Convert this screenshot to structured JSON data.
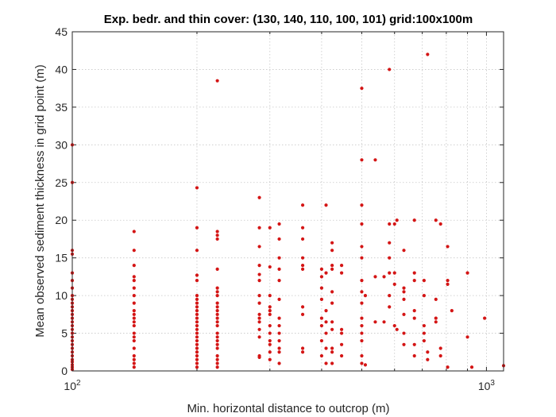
{
  "chart_data": {
    "type": "scatter",
    "title": "Exp. bedr. and thin cover: (130, 140, 110, 100, 101) grid:100x100m",
    "xlabel": "Min. horizontal distance to outcrop (m)",
    "ylabel": "Mean observed sediment thickness in grid point (m)",
    "x_scale": "log",
    "xlim": [
      100,
      1100
    ],
    "ylim": [
      0,
      45
    ],
    "x_ticks": [
      {
        "value": 100,
        "base": "10",
        "exp": "2"
      },
      {
        "value": 1000,
        "base": "10",
        "exp": "3"
      }
    ],
    "x_grid": [
      100,
      200,
      300,
      400,
      500,
      600,
      700,
      800,
      900,
      1000
    ],
    "y_ticks": [
      0,
      5,
      10,
      15,
      20,
      25,
      30,
      35,
      40,
      45
    ],
    "y_tick_labels": [
      "0",
      "5",
      "10",
      "15",
      "20",
      "25",
      "30",
      "35",
      "40",
      "45"
    ],
    "grid": true,
    "marker_color": "#d41515",
    "series": [
      {
        "points": [
          [
            100,
            30
          ],
          [
            100,
            25
          ],
          [
            100,
            16
          ],
          [
            100,
            15.5
          ],
          [
            100,
            13
          ],
          [
            100,
            12
          ],
          [
            100,
            11
          ],
          [
            100,
            10
          ],
          [
            100,
            9.5
          ],
          [
            100,
            9
          ],
          [
            100,
            8.5
          ],
          [
            100,
            8
          ],
          [
            100,
            7.5
          ],
          [
            100,
            7
          ],
          [
            100,
            6.5
          ],
          [
            100,
            6
          ],
          [
            100,
            5.5
          ],
          [
            100,
            5
          ],
          [
            100,
            4.5
          ],
          [
            100,
            4
          ],
          [
            100,
            3.5
          ],
          [
            100,
            3
          ],
          [
            100,
            2.5
          ],
          [
            100,
            2
          ],
          [
            100,
            1.5
          ],
          [
            100,
            1.2
          ],
          [
            100,
            0.8
          ],
          [
            100,
            0.5
          ],
          [
            100,
            0.2
          ],
          [
            141,
            18.5
          ],
          [
            141,
            16
          ],
          [
            141,
            14
          ],
          [
            141,
            12.5
          ],
          [
            141,
            12
          ],
          [
            141,
            11
          ],
          [
            141,
            10
          ],
          [
            141,
            9
          ],
          [
            141,
            8
          ],
          [
            141,
            7.5
          ],
          [
            141,
            7
          ],
          [
            141,
            6.5
          ],
          [
            141,
            6
          ],
          [
            141,
            5
          ],
          [
            141,
            4.5
          ],
          [
            141,
            4
          ],
          [
            141,
            3
          ],
          [
            141,
            2
          ],
          [
            141,
            1.5
          ],
          [
            141,
            1
          ],
          [
            141,
            0.5
          ],
          [
            200,
            24.3
          ],
          [
            200,
            19
          ],
          [
            200,
            16
          ],
          [
            200,
            12.7
          ],
          [
            200,
            12
          ],
          [
            200,
            10
          ],
          [
            200,
            9.5
          ],
          [
            200,
            9
          ],
          [
            200,
            8.5
          ],
          [
            200,
            8
          ],
          [
            200,
            7.5
          ],
          [
            200,
            7
          ],
          [
            200,
            6.5
          ],
          [
            200,
            6
          ],
          [
            200,
            5.5
          ],
          [
            200,
            5
          ],
          [
            200,
            4.5
          ],
          [
            200,
            4
          ],
          [
            200,
            3.5
          ],
          [
            200,
            3
          ],
          [
            200,
            2.5
          ],
          [
            200,
            2
          ],
          [
            200,
            1.5
          ],
          [
            200,
            1
          ],
          [
            200,
            0.5
          ],
          [
            224,
            38.5
          ],
          [
            224,
            18.5
          ],
          [
            224,
            18
          ],
          [
            224,
            17.5
          ],
          [
            224,
            13.5
          ],
          [
            224,
            11
          ],
          [
            224,
            10.5
          ],
          [
            224,
            10
          ],
          [
            224,
            9
          ],
          [
            224,
            8.5
          ],
          [
            224,
            8
          ],
          [
            224,
            7.5
          ],
          [
            224,
            7
          ],
          [
            224,
            6.5
          ],
          [
            224,
            6
          ],
          [
            224,
            5
          ],
          [
            224,
            4.5
          ],
          [
            224,
            4
          ],
          [
            224,
            3.5
          ],
          [
            224,
            3
          ],
          [
            224,
            2
          ],
          [
            224,
            1.5
          ],
          [
            224,
            1
          ],
          [
            224,
            0.5
          ],
          [
            283,
            23
          ],
          [
            283,
            19
          ],
          [
            283,
            16.5
          ],
          [
            283,
            14
          ],
          [
            283,
            12.8
          ],
          [
            283,
            12
          ],
          [
            283,
            10
          ],
          [
            283,
            9
          ],
          [
            283,
            7.5
          ],
          [
            283,
            7
          ],
          [
            283,
            6.5
          ],
          [
            283,
            5.5
          ],
          [
            283,
            4.5
          ],
          [
            283,
            2
          ],
          [
            283,
            1.8
          ],
          [
            300,
            19
          ],
          [
            300,
            13.8
          ],
          [
            300,
            10
          ],
          [
            300,
            8.5
          ],
          [
            300,
            8
          ],
          [
            300,
            7.5
          ],
          [
            300,
            6
          ],
          [
            300,
            5
          ],
          [
            300,
            4
          ],
          [
            300,
            3.5
          ],
          [
            300,
            2.5
          ],
          [
            300,
            1.5
          ],
          [
            316,
            19.5
          ],
          [
            316,
            17.5
          ],
          [
            316,
            15
          ],
          [
            316,
            13.5
          ],
          [
            316,
            12
          ],
          [
            316,
            9.5
          ],
          [
            316,
            7
          ],
          [
            316,
            6
          ],
          [
            316,
            5
          ],
          [
            316,
            4
          ],
          [
            316,
            3
          ],
          [
            316,
            2.5
          ],
          [
            316,
            1
          ],
          [
            360,
            22
          ],
          [
            360,
            19
          ],
          [
            360,
            17.5
          ],
          [
            360,
            15
          ],
          [
            360,
            14
          ],
          [
            360,
            13.5
          ],
          [
            360,
            8.5
          ],
          [
            360,
            7.5
          ],
          [
            360,
            3
          ],
          [
            360,
            2.5
          ],
          [
            400,
            13.5
          ],
          [
            400,
            12.5
          ],
          [
            400,
            11
          ],
          [
            400,
            9.5
          ],
          [
            400,
            7
          ],
          [
            400,
            6
          ],
          [
            400,
            4
          ],
          [
            400,
            2
          ],
          [
            410,
            22
          ],
          [
            410,
            13
          ],
          [
            410,
            8
          ],
          [
            410,
            6.5
          ],
          [
            410,
            5
          ],
          [
            410,
            3
          ],
          [
            410,
            1
          ],
          [
            424,
            17
          ],
          [
            424,
            16
          ],
          [
            424,
            14
          ],
          [
            424,
            13.5
          ],
          [
            424,
            10.5
          ],
          [
            424,
            9
          ],
          [
            424,
            6.5
          ],
          [
            424,
            5.5
          ],
          [
            424,
            3
          ],
          [
            424,
            2.5
          ],
          [
            424,
            1
          ],
          [
            447,
            14
          ],
          [
            447,
            13
          ],
          [
            447,
            5.5
          ],
          [
            447,
            5
          ],
          [
            447,
            3.5
          ],
          [
            447,
            2
          ],
          [
            500,
            37.5
          ],
          [
            500,
            28
          ],
          [
            500,
            22
          ],
          [
            500,
            19.5
          ],
          [
            500,
            16.5
          ],
          [
            500,
            15
          ],
          [
            500,
            12
          ],
          [
            500,
            10.5
          ],
          [
            500,
            9
          ],
          [
            500,
            7
          ],
          [
            500,
            6
          ],
          [
            500,
            5
          ],
          [
            500,
            4
          ],
          [
            500,
            2
          ],
          [
            500,
            1
          ],
          [
            510,
            10
          ],
          [
            510,
            0.8
          ],
          [
            539,
            28
          ],
          [
            539,
            12.5
          ],
          [
            539,
            6.5
          ],
          [
            566,
            6.5
          ],
          [
            566,
            12.5
          ],
          [
            583,
            40
          ],
          [
            583,
            19.5
          ],
          [
            583,
            17
          ],
          [
            583,
            15
          ],
          [
            583,
            13
          ],
          [
            583,
            10
          ],
          [
            583,
            8.5
          ],
          [
            600,
            19.5
          ],
          [
            600,
            11.5
          ],
          [
            600,
            6
          ],
          [
            600,
            13
          ],
          [
            608,
            20
          ],
          [
            608,
            5.5
          ],
          [
            632,
            16
          ],
          [
            632,
            10.5
          ],
          [
            632,
            9.5
          ],
          [
            632,
            7.5
          ],
          [
            632,
            5
          ],
          [
            632,
            3.5
          ],
          [
            632,
            11
          ],
          [
            670,
            20
          ],
          [
            670,
            12
          ],
          [
            670,
            13
          ],
          [
            670,
            8
          ],
          [
            670,
            7
          ],
          [
            670,
            3.5
          ],
          [
            670,
            2
          ],
          [
            707,
            12
          ],
          [
            707,
            10
          ],
          [
            707,
            6
          ],
          [
            707,
            5
          ],
          [
            707,
            4
          ],
          [
            721,
            42
          ],
          [
            721,
            2.5
          ],
          [
            721,
            1.5
          ],
          [
            755,
            20
          ],
          [
            755,
            9.5
          ],
          [
            755,
            7
          ],
          [
            755,
            6.5
          ],
          [
            775,
            19.5
          ],
          [
            775,
            3
          ],
          [
            775,
            2
          ],
          [
            806,
            16.5
          ],
          [
            806,
            12
          ],
          [
            806,
            11.5
          ],
          [
            806,
            0.5
          ],
          [
            825,
            8
          ],
          [
            900,
            13
          ],
          [
            900,
            4.5
          ],
          [
            922,
            0.5
          ],
          [
            990,
            7
          ],
          [
            1100,
            0.7
          ]
        ]
      }
    ]
  }
}
